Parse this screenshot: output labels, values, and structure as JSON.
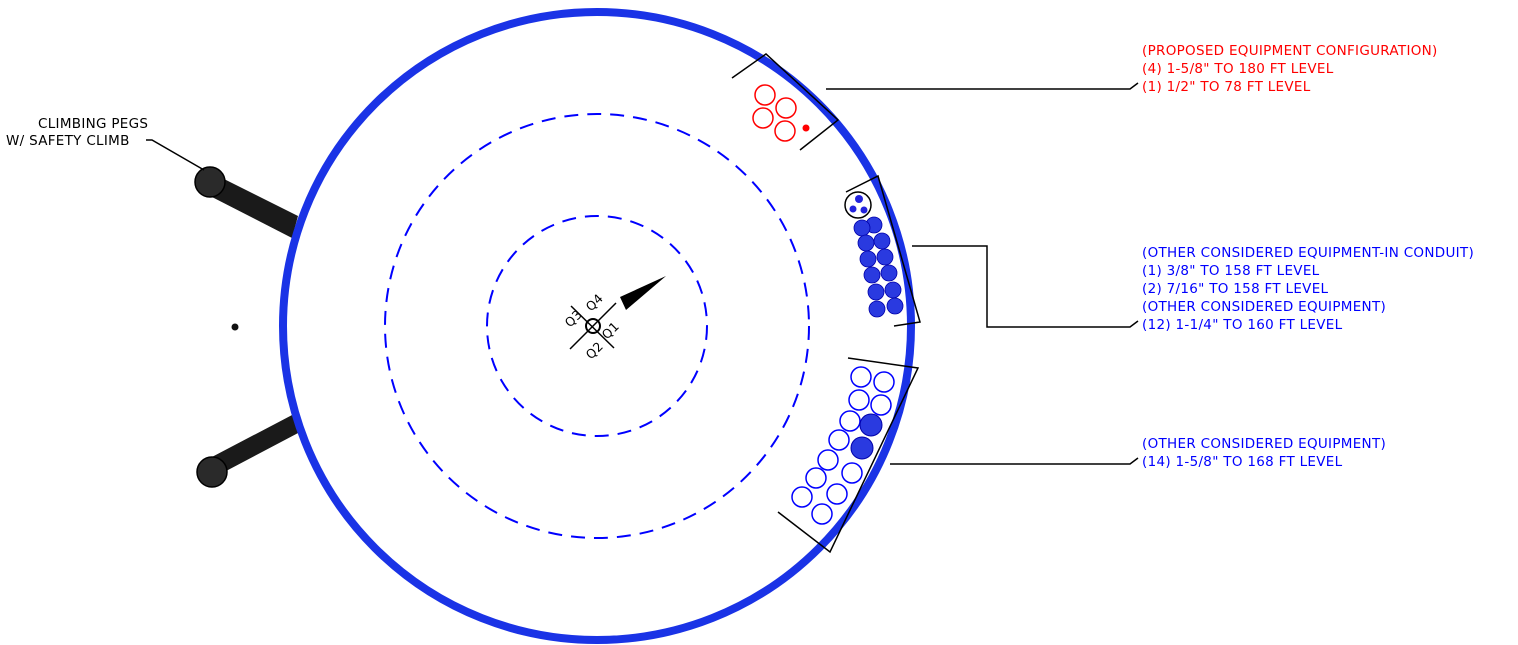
{
  "colors": {
    "tower": "#1a33e6",
    "proposed": "#ff0000",
    "considered": "#0000ff",
    "line": "#000000"
  },
  "climbing_label": {
    "line1": "CLIMBING PEGS",
    "line2": "W/ SAFETY CLIMB"
  },
  "quadrants": {
    "q1": "Q1",
    "q2": "Q2",
    "q3": "Q3",
    "q4": "Q4"
  },
  "callouts": {
    "proposed": {
      "line1": "(PROPOSED EQUIPMENT CONFIGURATION)",
      "line2": "(4) 1-5/8\" TO 180 FT LEVEL",
      "line3": "(1) 1/2\" TO 78 FT LEVEL"
    },
    "conduit": {
      "line1": "(OTHER CONSIDERED EQUIPMENT-IN CONDUIT)",
      "line2": "(1) 3/8\" TO 158 FT LEVEL",
      "line3": "(2) 7/16\" TO 158 FT LEVEL",
      "line4": "(OTHER CONSIDERED EQUIPMENT)",
      "line5": "(12) 1-1/4\" TO 160 FT LEVEL"
    },
    "lower": {
      "line1": "(OTHER CONSIDERED EQUIPMENT)",
      "line2": "(14) 1-5/8\" TO 168 FT LEVEL"
    }
  }
}
